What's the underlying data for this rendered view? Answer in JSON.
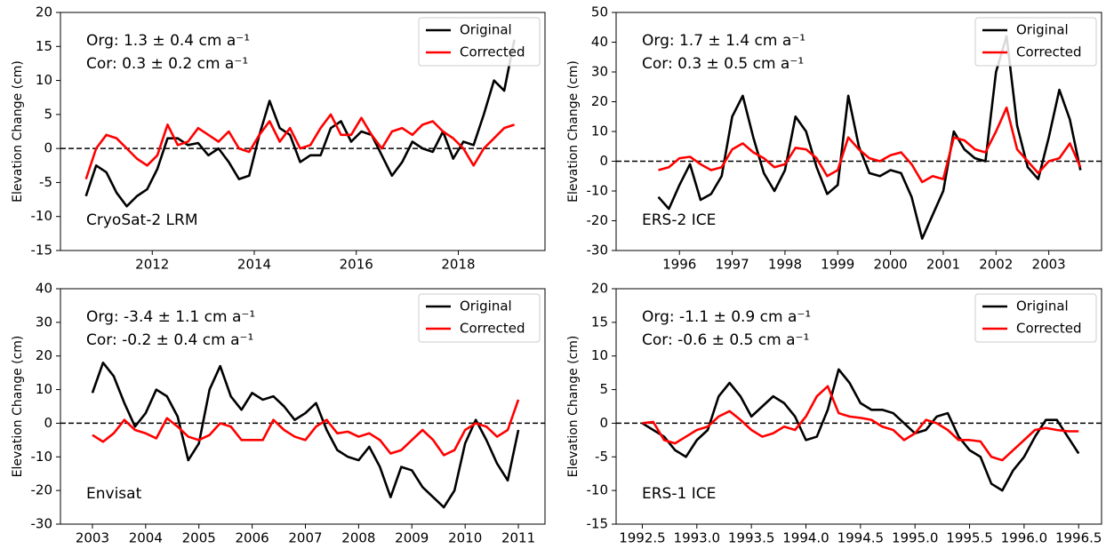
{
  "chart_data": [
    {
      "type": "line",
      "ylabel": "Elevation Change (cm)",
      "legend": "upper right",
      "hline": 0,
      "annotations": [
        "Org: 1.3 ± 0.4 cm a⁻¹",
        "Cor: 0.3 ± 0.2 cm a⁻¹",
        "CryoSat-2 LRM"
      ],
      "xlim": [
        2010.2,
        2019.7
      ],
      "xticks": [
        2012,
        2014,
        2016,
        2018
      ],
      "ylim": [
        -15,
        20
      ],
      "yticks": [
        -15,
        -10,
        -5,
        0,
        5,
        10,
        15,
        20
      ],
      "x": [
        2010.7,
        2010.9,
        2011.1,
        2011.3,
        2011.5,
        2011.7,
        2011.9,
        2012.1,
        2012.3,
        2012.5,
        2012.7,
        2012.9,
        2013.1,
        2013.3,
        2013.5,
        2013.7,
        2013.9,
        2014.1,
        2014.3,
        2014.5,
        2014.7,
        2014.9,
        2015.1,
        2015.3,
        2015.5,
        2015.7,
        2015.9,
        2016.1,
        2016.3,
        2016.5,
        2016.7,
        2016.9,
        2017.1,
        2017.3,
        2017.5,
        2017.7,
        2017.9,
        2018.1,
        2018.3,
        2018.5,
        2018.7,
        2018.9,
        2019.1
      ],
      "series": [
        {
          "name": "Original",
          "color": "#000000",
          "values": [
            -7,
            -2.5,
            -3.5,
            -6.5,
            -8.5,
            -7,
            -6,
            -3,
            1.5,
            1.5,
            0.5,
            0.8,
            -1,
            0,
            -2,
            -4.5,
            -4,
            2,
            7,
            3,
            2,
            -2,
            -1,
            -1,
            3,
            4,
            1,
            2.5,
            2,
            -1,
            -4,
            -2,
            1,
            0,
            -0.5,
            2.5,
            -1.5,
            1,
            0.5,
            5,
            10,
            8.5,
            16
          ]
        },
        {
          "name": "Corrected",
          "color": "#ff0000",
          "values": [
            -4.5,
            0,
            2,
            1.5,
            0,
            -1.5,
            -2.5,
            -1,
            3.5,
            0.5,
            1,
            3,
            2,
            1,
            2.5,
            0,
            -0.5,
            2,
            4,
            1,
            3,
            0,
            0.5,
            3,
            5,
            2,
            2,
            4.5,
            2,
            0,
            2.5,
            3,
            2,
            3.5,
            4,
            2.5,
            1.5,
            0,
            -2.5,
            0,
            1.5,
            3,
            3.5
          ]
        }
      ]
    },
    {
      "type": "line",
      "ylabel": "Elevation Change (cm)",
      "legend": "upper right",
      "hline": 0,
      "annotations": [
        "Org: 1.7 ± 1.4 cm a⁻¹",
        "Cor: 0.3 ± 0.5 cm a⁻¹",
        "ERS-2 ICE"
      ],
      "xlim": [
        1994.8,
        2004.0
      ],
      "xticks": [
        1996,
        1997,
        1998,
        1999,
        2000,
        2001,
        2002,
        2003
      ],
      "ylim": [
        -30,
        50
      ],
      "yticks": [
        -30,
        -20,
        -10,
        0,
        10,
        20,
        30,
        40,
        50
      ],
      "x": [
        1995.6,
        1995.8,
        1996.0,
        1996.2,
        1996.4,
        1996.6,
        1996.8,
        1997.0,
        1997.2,
        1997.4,
        1997.6,
        1997.8,
        1998.0,
        1998.2,
        1998.4,
        1998.6,
        1998.8,
        1999.0,
        1999.2,
        1999.4,
        1999.6,
        1999.8,
        2000.0,
        2000.2,
        2000.4,
        2000.6,
        2000.8,
        2001.0,
        2001.2,
        2001.4,
        2001.6,
        2001.8,
        2002.0,
        2002.2,
        2002.4,
        2002.6,
        2002.8,
        2003.0,
        2003.2,
        2003.4,
        2003.6
      ],
      "series": [
        {
          "name": "Original",
          "color": "#000000",
          "values": [
            -12,
            -16,
            -8,
            -1,
            -13,
            -11,
            -5,
            15,
            22,
            8,
            -4,
            -10,
            -3,
            15,
            10,
            -2,
            -11,
            -8,
            22,
            5,
            -4,
            -5,
            -3,
            -4,
            -12,
            -26,
            -18,
            -10,
            10,
            4,
            1,
            0,
            30,
            42,
            12,
            -2,
            -6,
            8,
            24,
            14,
            -3
          ]
        },
        {
          "name": "Corrected",
          "color": "#ff0000",
          "values": [
            -3,
            -2,
            1,
            1.5,
            -1,
            -3,
            -2,
            4,
            6,
            3,
            1,
            -2,
            -1,
            4.5,
            4,
            1,
            -5,
            -3,
            8,
            4,
            1,
            0,
            2,
            3,
            -1,
            -7,
            -5,
            -6,
            8,
            7,
            4,
            3,
            10,
            18,
            4,
            0,
            -4,
            0,
            1,
            6,
            -2
          ]
        }
      ]
    },
    {
      "type": "line",
      "ylabel": "Elevation Change (cm)",
      "legend": "upper right",
      "hline": 0,
      "annotations": [
        "Org: -3.4 ± 1.1 cm a⁻¹",
        "Cor: -0.2 ± 0.4 cm a⁻¹",
        "Envisat"
      ],
      "xlim": [
        2002.4,
        2011.5
      ],
      "xticks": [
        2003,
        2004,
        2005,
        2006,
        2007,
        2008,
        2009,
        2010,
        2011
      ],
      "ylim": [
        -30,
        40
      ],
      "yticks": [
        -30,
        -20,
        -10,
        0,
        10,
        20,
        30,
        40
      ],
      "x": [
        2003.0,
        2003.2,
        2003.4,
        2003.6,
        2003.8,
        2004.0,
        2004.2,
        2004.4,
        2004.6,
        2004.8,
        2005.0,
        2005.2,
        2005.4,
        2005.6,
        2005.8,
        2006.0,
        2006.2,
        2006.4,
        2006.6,
        2006.8,
        2007.0,
        2007.2,
        2007.4,
        2007.6,
        2007.8,
        2008.0,
        2008.2,
        2008.4,
        2008.6,
        2008.8,
        2009.0,
        2009.2,
        2009.4,
        2009.6,
        2009.8,
        2010.0,
        2010.2,
        2010.4,
        2010.6,
        2010.8,
        2011.0
      ],
      "series": [
        {
          "name": "Original",
          "color": "#000000",
          "values": [
            9,
            18,
            14,
            6,
            -1,
            3,
            10,
            8,
            2,
            -11,
            -6,
            10,
            17,
            8,
            4,
            9,
            7,
            8,
            5,
            1,
            3,
            6,
            -2,
            -8,
            -10,
            -11,
            -7,
            -13,
            -22,
            -13,
            -14,
            -19,
            -22,
            -25,
            -20,
            -6,
            1,
            -5,
            -12,
            -17,
            -2
          ]
        },
        {
          "name": "Corrected",
          "color": "#ff0000",
          "values": [
            -3.5,
            -5.5,
            -3,
            1,
            -2,
            -3,
            -4.5,
            1.5,
            -1,
            -4,
            -5,
            -3.5,
            0,
            -1,
            -5,
            -5,
            -5,
            1,
            -2,
            -4,
            -5,
            -1,
            1,
            -3,
            -2.5,
            -4,
            -3,
            -5,
            -9,
            -8,
            -5,
            -2,
            -5,
            -9.5,
            -8,
            -2,
            0,
            -1,
            -4,
            -2,
            7
          ]
        }
      ]
    },
    {
      "type": "line",
      "ylabel": "Elevation Change (cm)",
      "legend": "upper right",
      "hline": 0,
      "annotations": [
        "Org: -1.1 ± 0.9 cm a⁻¹",
        "Cor: -0.6 ± 0.5 cm a⁻¹",
        "ERS-1 ICE"
      ],
      "xlim": [
        1992.26,
        1996.71
      ],
      "xticks": [
        1992.5,
        {
          "value": 1993,
          "label": "1993.0"
        },
        1993.5,
        {
          "value": 1994,
          "label": "1994.0"
        },
        1994.5,
        {
          "value": 1995,
          "label": "1995.0"
        },
        1995.5,
        {
          "value": 1996,
          "label": "1996.0"
        },
        1996.5
      ],
      "ylim": [
        -15,
        20
      ],
      "yticks": [
        -15,
        -10,
        -5,
        0,
        5,
        10,
        15,
        20
      ],
      "x": [
        1992.5,
        1992.6,
        1992.7,
        1992.8,
        1992.9,
        1993.0,
        1993.1,
        1993.2,
        1993.3,
        1993.4,
        1993.5,
        1993.6,
        1993.7,
        1993.8,
        1993.9,
        1994.0,
        1994.1,
        1994.2,
        1994.3,
        1994.4,
        1994.5,
        1994.6,
        1994.7,
        1994.8,
        1994.9,
        1995.0,
        1995.1,
        1995.2,
        1995.3,
        1995.4,
        1995.5,
        1995.6,
        1995.7,
        1995.8,
        1995.9,
        1996.0,
        1996.1,
        1996.2,
        1996.3,
        1996.4,
        1996.5
      ],
      "series": [
        {
          "name": "Original",
          "color": "#000000",
          "values": [
            0,
            -1,
            -2,
            -4,
            -5,
            -2.5,
            -1,
            4,
            6,
            4,
            1,
            2.5,
            4,
            3,
            1,
            -2.5,
            -2,
            2,
            8,
            6,
            3,
            2,
            2,
            1.5,
            0,
            -1.5,
            -1,
            1,
            1.5,
            -2,
            -4,
            -5,
            -9,
            -10,
            -7,
            -5,
            -2,
            0.5,
            0.5,
            -2,
            -4.5
          ]
        },
        {
          "name": "Corrected",
          "color": "#ff0000",
          "values": [
            0,
            0.2,
            -2.5,
            -3,
            -2,
            -1,
            -0.5,
            1,
            1.8,
            0.5,
            -1,
            -2,
            -1.5,
            -0.5,
            -1,
            1,
            4,
            5.5,
            1.5,
            1,
            0.8,
            0.5,
            -0.5,
            -1,
            -2.5,
            -1.5,
            0.5,
            0,
            -1,
            -2.5,
            -2.5,
            -2.7,
            -5,
            -5.5,
            -4,
            -2.5,
            -1,
            -0.7,
            -1,
            -1.2,
            -1.2
          ]
        }
      ]
    }
  ]
}
